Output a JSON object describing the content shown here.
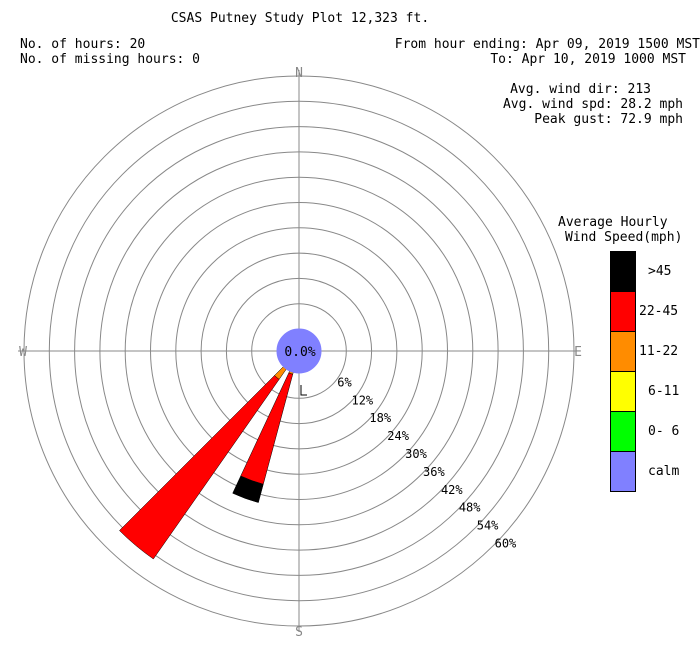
{
  "header": {
    "title": "CSAS Putney Study Plot 12,323 ft.",
    "hours": "No. of hours: 20",
    "missing": "No. of missing hours: 0",
    "from": "From hour ending: Apr 09, 2019 1500 MST",
    "to": "To: Apr 10, 2019 1000 MST"
  },
  "stats": {
    "avg_dir": "Avg. wind dir: 213",
    "avg_spd": "Avg. wind spd: 28.2 mph",
    "peak": "Peak gust: 72.9 mph"
  },
  "legend": {
    "title_line1": "Average Hourly",
    "title_line2": "Wind Speed(mph)",
    "items": [
      {
        "label": ">45",
        "color": "#000000"
      },
      {
        "label": "22-45",
        "color": "#ff0000"
      },
      {
        "label": "11-22",
        "color": "#ff8c00"
      },
      {
        "label": "6-11",
        "color": "#ffff00"
      },
      {
        "label": "0- 6",
        "color": "#00ff00"
      },
      {
        "label": "calm",
        "color": "#8080ff"
      }
    ]
  },
  "chart_data": {
    "type": "windrose",
    "compass": [
      "N",
      "E",
      "S",
      "W"
    ],
    "rings_percent": [
      6,
      12,
      18,
      24,
      30,
      36,
      42,
      48,
      54,
      60
    ],
    "ring_labels": [
      "6%",
      "12%",
      "18%",
      "24%",
      "30%",
      "36%",
      "42%",
      "48%",
      "54%",
      "60%"
    ],
    "calm_percent": 0.0,
    "calm_label": "0.0%",
    "sector_width_deg": 10,
    "sectors": [
      {
        "direction_deg": 200,
        "segments": [
          {
            "speed_class": "11-22",
            "percent": 0.5
          },
          {
            "speed_class": "22-45",
            "percent": 27.0
          },
          {
            "speed_class": ">45",
            "percent": 4.5
          }
        ]
      },
      {
        "direction_deg": 220,
        "segments": [
          {
            "speed_class": "11-22",
            "percent": 3.0
          },
          {
            "speed_class": "22-45",
            "percent": 52.0
          }
        ]
      }
    ],
    "avg_dir_marker_deg": 213
  }
}
